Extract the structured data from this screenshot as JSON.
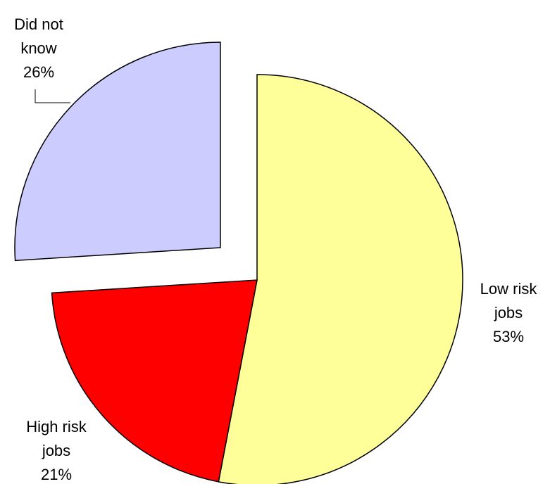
{
  "chart_data": {
    "type": "pie",
    "title": "",
    "slices": [
      {
        "label_lines": [
          "Low risk",
          "jobs",
          "53%"
        ],
        "value": 53,
        "color": "#FFFF99"
      },
      {
        "label_lines": [
          "High risk",
          "jobs",
          "21%"
        ],
        "value": 21,
        "color": "#FF0000"
      },
      {
        "label_lines": [
          "Did not",
          "know",
          "26%"
        ],
        "value": 26,
        "color": "#CCCCFF"
      }
    ],
    "start_angle": "12 o'clock",
    "direction": "clockwise",
    "exploded": "Did not know",
    "legend": "none"
  }
}
